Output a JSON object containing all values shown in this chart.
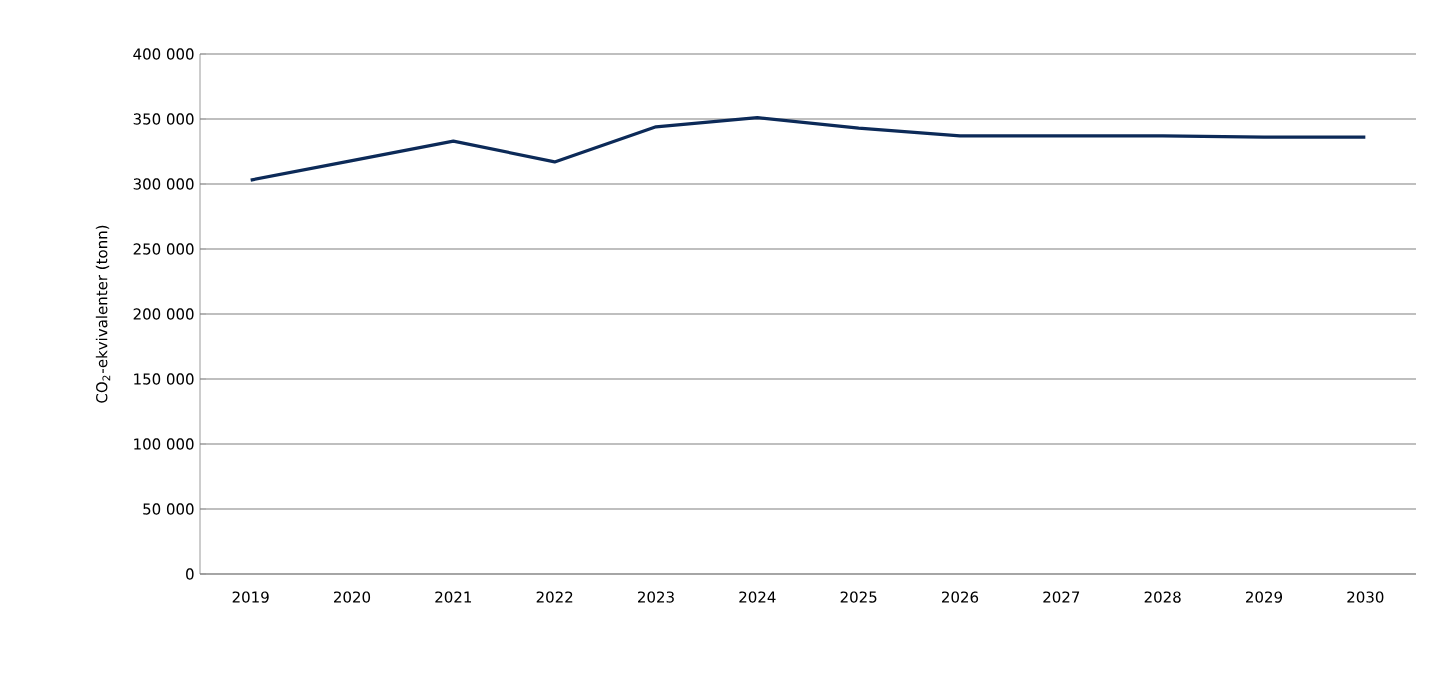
{
  "chart_data": {
    "type": "line",
    "ylabel": "CO$_{2}$-ekvivalenter (tonn)",
    "categories": [
      "2019",
      "2020",
      "2021",
      "2022",
      "2023",
      "2024",
      "2025",
      "2026",
      "2027",
      "2028",
      "2029",
      "2030"
    ],
    "series": [
      {
        "color": "#0c2a58",
        "values": [
          303000,
          318000,
          333000,
          317000,
          344000,
          351000,
          343000,
          337000,
          337000,
          337000,
          336000,
          336000
        ]
      }
    ],
    "ylim": [
      0,
      400000
    ],
    "yticks": [
      {
        "value": 0,
        "label": "0"
      },
      {
        "value": 50000,
        "label": "50 000"
      },
      {
        "value": 100000,
        "label": "100 000"
      },
      {
        "value": 150000,
        "label": "150 000"
      },
      {
        "value": 200000,
        "label": "200 000"
      },
      {
        "value": 250000,
        "label": "250 000"
      },
      {
        "value": 300000,
        "label": "300 000"
      },
      {
        "value": 350000,
        "label": "350 000"
      },
      {
        "value": 400000,
        "label": "400 000"
      }
    ],
    "grid": "y",
    "marker": "none",
    "line_style": "solid"
  }
}
